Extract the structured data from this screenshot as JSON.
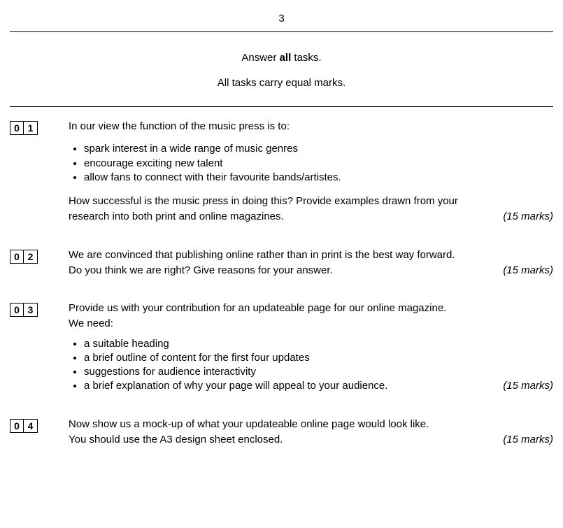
{
  "pageNumber": "3",
  "instructionLine1Pre": "Answer ",
  "instructionLine1Bold": "all",
  "instructionLine1Post": " tasks.",
  "instructionLine2": "All tasks carry equal marks.",
  "q1": {
    "num": [
      "0",
      "1"
    ],
    "intro": "In our view the function of the music press is to:",
    "bullets": [
      "spark interest in a wide range of music genres",
      "encourage exciting new talent",
      "allow fans to connect with their favourite bands/artistes."
    ],
    "ask1": "How successful is the music press in doing this?  Provide examples drawn from your",
    "ask2": "research into both print and online magazines.",
    "marks": "(15 marks)"
  },
  "q2": {
    "num": [
      "0",
      "2"
    ],
    "line1": "We are convinced that publishing online rather than in print is the best way forward.",
    "line2": "Do you think we are right?  Give reasons for your answer.",
    "marks": "(15 marks)"
  },
  "q3": {
    "num": [
      "0",
      "3"
    ],
    "line1": "Provide us with your contribution for an updateable page for our online magazine.",
    "line2": "We need:",
    "bullets": [
      "a suitable heading",
      "a brief outline of content for the first four updates",
      "suggestions for audience interactivity",
      "a brief explanation of why your page will appeal to your audience."
    ],
    "marks": "(15 marks)"
  },
  "q4": {
    "num": [
      "0",
      "4"
    ],
    "line1": "Now show us a mock-up of what your updateable online page would look like.",
    "line2": "You should use the A3 design sheet enclosed.",
    "marks": "(15 marks)"
  }
}
